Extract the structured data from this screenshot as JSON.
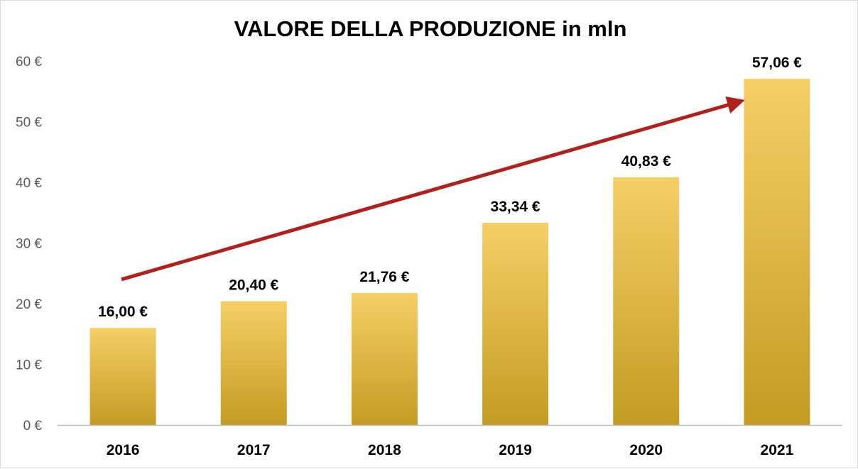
{
  "chart_data": {
    "type": "bar",
    "title": "VALORE DELLA PRODUZIONE in mln",
    "categories": [
      "2016",
      "2017",
      "2018",
      "2019",
      "2020",
      "2021"
    ],
    "values": [
      16.0,
      20.4,
      21.76,
      33.34,
      40.83,
      57.06
    ],
    "data_labels": [
      "16,00 €",
      "20,40 €",
      "21,76 €",
      "33,34 €",
      "40,83 €",
      "57,06 €"
    ],
    "y_ticks": [
      "0 €",
      "10 €",
      "20 €",
      "30 €",
      "40 €",
      "50 €",
      "60 €"
    ],
    "y_tick_values": [
      0,
      10,
      20,
      30,
      40,
      50,
      60
    ],
    "ylim": [
      0,
      60
    ],
    "xlabel": "",
    "ylabel": "",
    "grid": false,
    "legend": "none",
    "trend_arrow": {
      "from_value": 24,
      "to_value": 53.4,
      "direction": "up"
    },
    "colors": {
      "bar_top": "#f5cf66",
      "bar_bottom": "#c39c24",
      "arrow": "#b0201c",
      "axis": "#bfbfbf"
    }
  }
}
